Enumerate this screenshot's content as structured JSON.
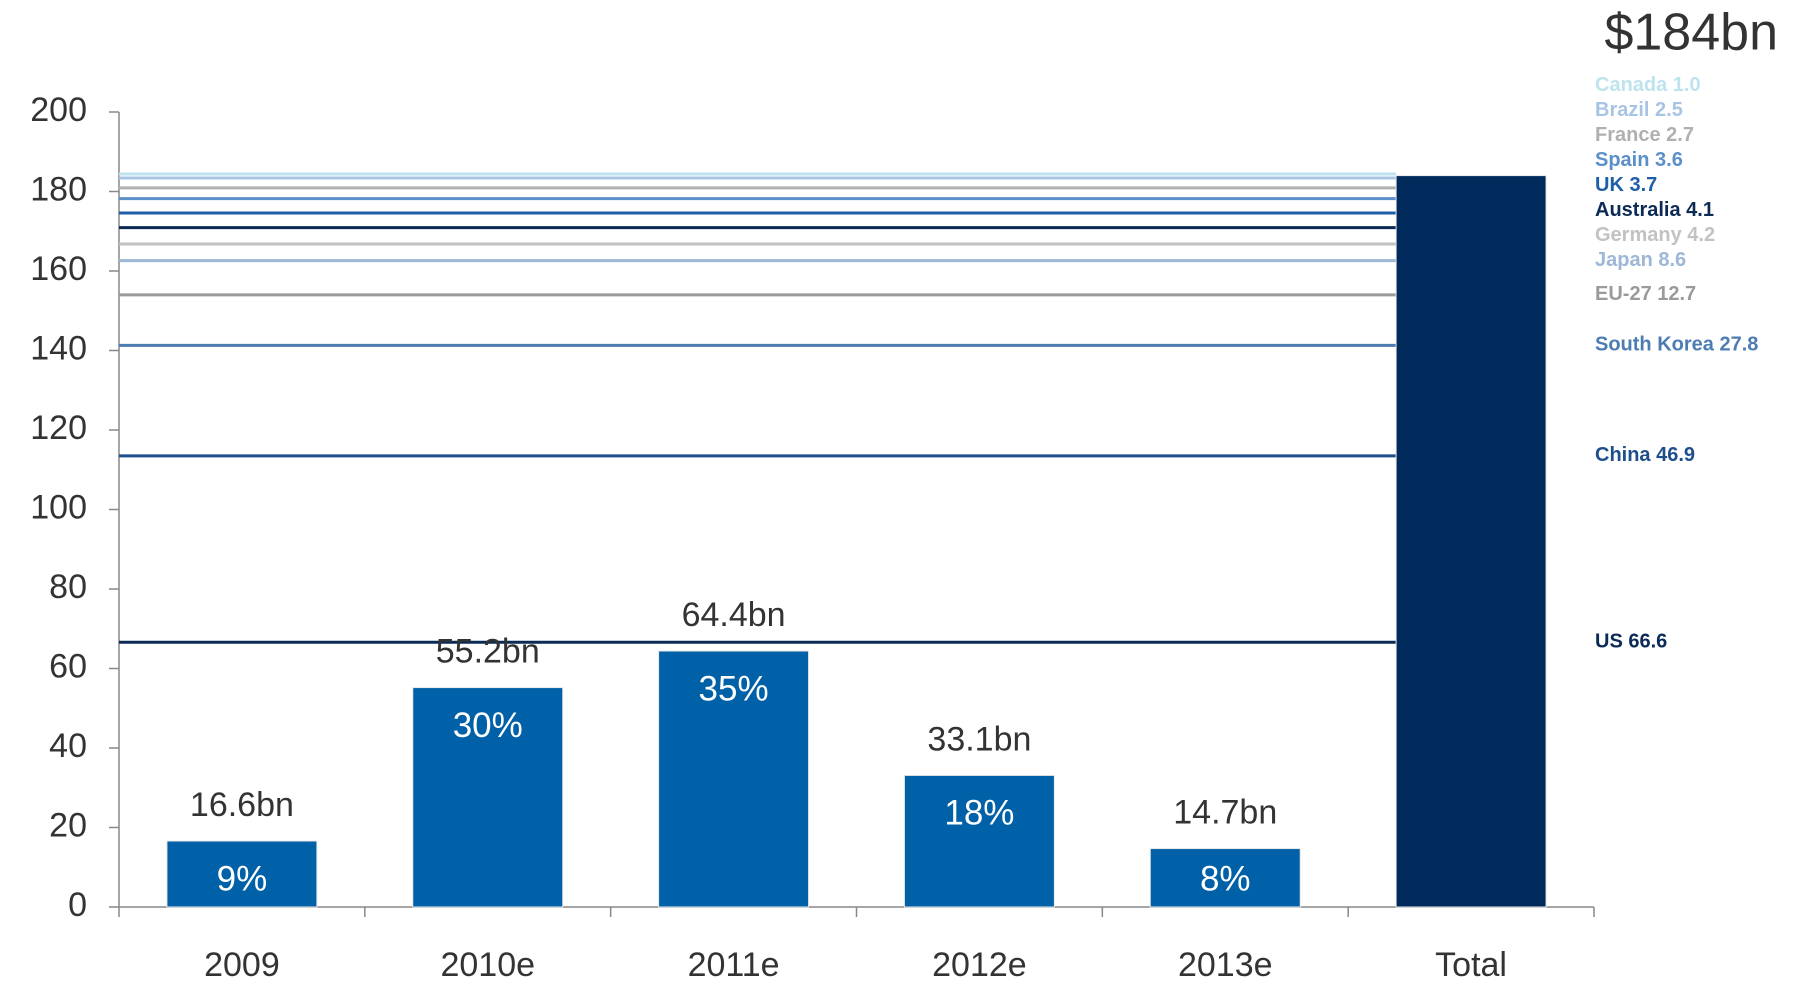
{
  "chart_data": {
    "type": "bar",
    "categories": [
      "2009",
      "2010e",
      "2011e",
      "2012e",
      "2013e",
      "Total"
    ],
    "values": [
      16.6,
      55.2,
      64.4,
      33.1,
      14.7,
      184
    ],
    "value_labels": [
      "16.6bn",
      "55.2bn",
      "64.4bn",
      "33.1bn",
      "14.7bn",
      "$184bn"
    ],
    "colors": [
      "#0060a8",
      "#0060a8",
      "#0060a8",
      "#0060a8",
      "#0060a8",
      "#002a5c"
    ],
    "shares": [
      9,
      30,
      35,
      18,
      8
    ],
    "share_labels": [
      "9%",
      "30%",
      "35%",
      "18%",
      "8%"
    ],
    "ylim": [
      0,
      200
    ],
    "yticks": [
      0,
      20,
      40,
      60,
      80,
      100,
      120,
      140,
      160,
      180,
      200
    ],
    "breakdown": {
      "values": [
        66.6,
        46.9,
        27.8,
        12.7,
        8.6,
        4.2,
        4.1,
        3.7,
        3.6,
        2.7,
        2.5,
        1.0
      ],
      "value_labels": [
        "US 66.6",
        "China 46.9",
        "South Korea 27.8",
        "EU-27 12.7",
        "Japan 8.6",
        "Germany 4.2",
        "Australia 4.1",
        "UK 3.7",
        "Spain 3.6",
        "France 2.7",
        "Brazil 2.5",
        "Canada 1.0"
      ],
      "colors": [
        "#0b2a55",
        "#1f4e8c",
        "#4d7cb2",
        "#9a9a9a",
        "#9db7d6",
        "#c2c2c2",
        "#0b2a55",
        "#1f5fa8",
        "#5b8fc9",
        "#b0b0b0",
        "#a8c4e4",
        "#bfe3ee"
      ]
    }
  }
}
